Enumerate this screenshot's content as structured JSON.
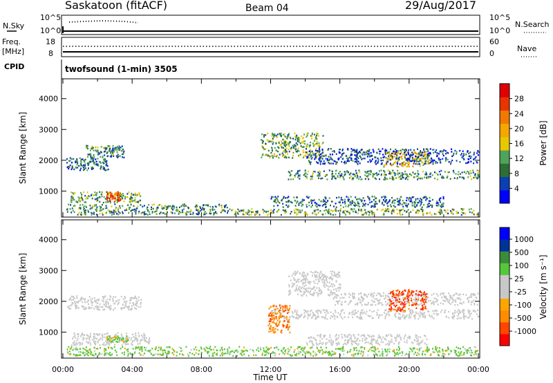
{
  "header": {
    "station": "Saskatoon (fitACF)",
    "beam": "Beam 04",
    "date": "29/Aug/2017"
  },
  "info_panel": {
    "nsky_label": "N.Sky",
    "nsky_ticks": [
      "10^5",
      "10^0"
    ],
    "nsky_right_ticks": [
      "10^5",
      "10^0"
    ],
    "nsearch_label": "N.Search",
    "freq_label": "Freq.",
    "freq_unit": "[MHz]",
    "freq_ticks": [
      "18",
      "8"
    ],
    "nave_ticks": [
      "60",
      "0"
    ],
    "nave_label": "Nave",
    "cpid_label": "CPID",
    "cpid_text": "twofsound (1-min) 3505"
  },
  "colors": {
    "power_scale": [
      "#0000ff",
      "#0b3fb4",
      "#2c6e35",
      "#4fa35a",
      "#e6c700",
      "#f5a700",
      "#f07a00",
      "#e83500",
      "#e00000"
    ],
    "velocity_scale": [
      "#ff0000",
      "#ff4500",
      "#ff8c00",
      "#ffa500",
      "#c8c8c8",
      "#c8c8c8",
      "#55c83a",
      "#3a8c3a",
      "#00329b",
      "#0000ff"
    ],
    "ground_scatter": "#c8c8c8"
  },
  "chart_data": [
    {
      "type": "heatmap",
      "name": "power",
      "ylabel": "Slant Range [km]",
      "xlabel": "",
      "yticks": [
        "1000",
        "2000",
        "3000",
        "4000"
      ],
      "ylim": [
        200,
        4600
      ],
      "xlim": [
        0,
        24
      ],
      "colorbar_label": "Power [dB]",
      "colorbar_ticks": [
        "4",
        "8",
        "12",
        "16",
        "20",
        "24",
        "28"
      ],
      "colorbar_range": [
        0,
        32
      ],
      "regions": [
        {
          "t0": 0.2,
          "t1": 2.6,
          "r0": 1700,
          "r1": 2100,
          "level": 8
        },
        {
          "t0": 1.3,
          "t1": 3.5,
          "r0": 2100,
          "r1": 2500,
          "level": 10
        },
        {
          "t0": 0.4,
          "t1": 4.5,
          "r0": 650,
          "r1": 1000,
          "level": 12
        },
        {
          "t0": 2.5,
          "t1": 3.3,
          "r0": 700,
          "r1": 1000,
          "level": 26
        },
        {
          "t0": 0.2,
          "t1": 9.5,
          "r0": 250,
          "r1": 600,
          "level": 10
        },
        {
          "t0": 9.5,
          "t1": 24.0,
          "r0": 250,
          "r1": 450,
          "level": 12
        },
        {
          "t0": 11.4,
          "t1": 15.0,
          "r0": 2100,
          "r1": 2900,
          "level": 12
        },
        {
          "t0": 13.0,
          "t1": 24.0,
          "r0": 1400,
          "r1": 1700,
          "level": 10
        },
        {
          "t0": 18.5,
          "t1": 21.2,
          "r0": 1800,
          "r1": 2300,
          "level": 18
        },
        {
          "t0": 14.0,
          "t1": 24.0,
          "r0": 1900,
          "r1": 2400,
          "level": 6
        },
        {
          "t0": 12.0,
          "t1": 22.0,
          "r0": 500,
          "r1": 850,
          "level": 8
        }
      ]
    },
    {
      "type": "heatmap",
      "name": "velocity",
      "ylabel": "Slant Range [km]",
      "xlabel": "Time UT",
      "yticks": [
        "1000",
        "2000",
        "3000",
        "4000"
      ],
      "xticks": [
        "00:00",
        "04:00",
        "08:00",
        "12:00",
        "16:00",
        "20:00",
        "00:00"
      ],
      "ylim": [
        200,
        4600
      ],
      "xlim": [
        0,
        24
      ],
      "colorbar_label": "Velocity [m s⁻¹]",
      "colorbar_ticks": [
        "1000",
        "500",
        "100",
        "25",
        "-25",
        "-100",
        "-500",
        "-1000"
      ],
      "regions": [
        {
          "t0": 0.2,
          "t1": 4.5,
          "r0": 1750,
          "r1": 2200,
          "kind": "ground"
        },
        {
          "t0": 0.4,
          "t1": 5.0,
          "r0": 600,
          "r1": 1000,
          "kind": "ground"
        },
        {
          "t0": 12.0,
          "t1": 24.0,
          "r0": 1450,
          "r1": 1750,
          "kind": "ground"
        },
        {
          "t0": 13.0,
          "t1": 16.0,
          "r0": 2200,
          "r1": 3000,
          "kind": "ground"
        },
        {
          "t0": 15.5,
          "t1": 24.0,
          "r0": 1900,
          "r1": 2300,
          "kind": "ground"
        },
        {
          "t0": 14.0,
          "t1": 21.0,
          "r0": 600,
          "r1": 950,
          "kind": "ground"
        },
        {
          "t0": 0.2,
          "t1": 24.0,
          "r0": 250,
          "r1": 550,
          "kind": "green"
        },
        {
          "t0": 11.8,
          "t1": 13.1,
          "r0": 1000,
          "r1": 1900,
          "kind": "orange"
        },
        {
          "t0": 18.8,
          "t1": 21.0,
          "r0": 1700,
          "r1": 2400,
          "kind": "red"
        },
        {
          "t0": 2.5,
          "t1": 3.8,
          "r0": 700,
          "r1": 900,
          "kind": "green"
        }
      ]
    }
  ]
}
